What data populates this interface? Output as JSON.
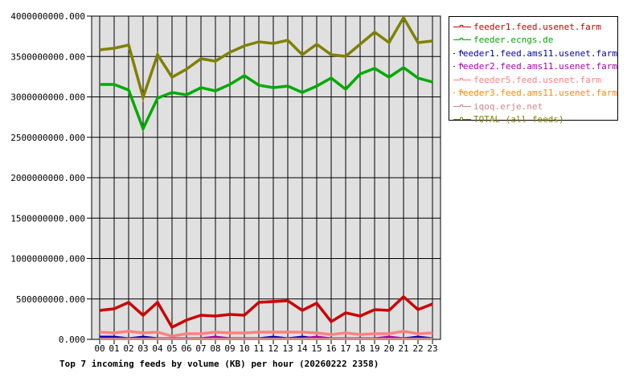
{
  "chart_data": {
    "type": "line",
    "title": "Top 7 incoming feeds by volume (KB) per hour (20260222 2358)",
    "xlabel": "",
    "ylabel": "",
    "ylim": [
      0,
      4000000000
    ],
    "grid": true,
    "legend_position": "right",
    "y_ticks": [
      "0.000",
      "500000000.000",
      "1000000000.000",
      "1500000000.000",
      "2000000000.000",
      "2500000000.000",
      "3000000000.000",
      "3500000000.000",
      "4000000000.000"
    ],
    "categories": [
      "00",
      "01",
      "02",
      "03",
      "04",
      "05",
      "06",
      "07",
      "08",
      "09",
      "10",
      "11",
      "12",
      "13",
      "14",
      "15",
      "16",
      "17",
      "18",
      "19",
      "20",
      "21",
      "22",
      "23"
    ],
    "series": [
      {
        "name": "feeder1.feed.usenet.farm",
        "color": "#cc0000",
        "values": [
          358000000,
          378000000,
          458000000,
          298000000,
          458000000,
          149000000,
          239000000,
          299000000,
          289000000,
          308000000,
          299000000,
          458000000,
          468000000,
          478000000,
          358000000,
          448000000,
          219000000,
          328000000,
          289000000,
          368000000,
          358000000,
          527000000,
          368000000,
          438000000
        ]
      },
      {
        "name": "feeder.ecngs.de",
        "color": "#00aa00",
        "values": [
          3154000000,
          3154000000,
          3085000000,
          2607000000,
          2985000000,
          3055000000,
          3025000000,
          3114000000,
          3075000000,
          3154000000,
          3264000000,
          3144000000,
          3114000000,
          3134000000,
          3055000000,
          3134000000,
          3234000000,
          3095000000,
          3284000000,
          3353000000,
          3244000000,
          3363000000,
          3234000000,
          3184000000
        ]
      },
      {
        "name": "feeder1.feed.ams11.usenet.farm",
        "color": "#0000aa",
        "values": [
          30000000,
          30000000,
          10000000,
          30000000,
          10000000,
          10000000,
          10000000,
          10000000,
          10000000,
          10000000,
          10000000,
          10000000,
          30000000,
          10000000,
          30000000,
          10000000,
          10000000,
          10000000,
          10000000,
          10000000,
          10000000,
          10000000,
          30000000,
          10000000
        ]
      },
      {
        "name": "feeder2.feed.ams11.usenet.farm",
        "color": "#aa00aa",
        "values": [
          10000000,
          10000000,
          10000000,
          10000000,
          10000000,
          10000000,
          10000000,
          10000000,
          30000000,
          10000000,
          10000000,
          10000000,
          10000000,
          10000000,
          10000000,
          30000000,
          10000000,
          10000000,
          10000000,
          10000000,
          30000000,
          10000000,
          10000000,
          10000000
        ]
      },
      {
        "name": "feeder5.feed.usenet.farm",
        "color": "#ff8080",
        "values": [
          90000000,
          80000000,
          100000000,
          80000000,
          90000000,
          40000000,
          70000000,
          70000000,
          90000000,
          80000000,
          80000000,
          90000000,
          90000000,
          90000000,
          90000000,
          80000000,
          60000000,
          80000000,
          60000000,
          70000000,
          70000000,
          100000000,
          70000000,
          80000000
        ]
      },
      {
        "name": "feeder3.feed.ams11.usenet.farm",
        "color": "#ff8800",
        "values": [
          5000000,
          5000000,
          5000000,
          5000000,
          5000000,
          5000000,
          5000000,
          5000000,
          5000000,
          5000000,
          5000000,
          5000000,
          5000000,
          5000000,
          5000000,
          5000000,
          5000000,
          5000000,
          5000000,
          5000000,
          5000000,
          5000000,
          5000000,
          5000000
        ]
      },
      {
        "name": "iqoq.erje.net",
        "color": "#cc8888",
        "values": [
          5000000,
          5000000,
          5000000,
          5000000,
          5000000,
          5000000,
          5000000,
          5000000,
          5000000,
          5000000,
          5000000,
          5000000,
          5000000,
          5000000,
          5000000,
          5000000,
          5000000,
          5000000,
          5000000,
          5000000,
          5000000,
          5000000,
          5000000,
          5000000
        ]
      },
      {
        "name": "TOTAL (all feeds)",
        "color": "#808000",
        "values": [
          3582000000,
          3602000000,
          3642000000,
          2995000000,
          3522000000,
          3244000000,
          3343000000,
          3473000000,
          3443000000,
          3552000000,
          3632000000,
          3682000000,
          3662000000,
          3701000000,
          3522000000,
          3652000000,
          3522000000,
          3502000000,
          3652000000,
          3801000000,
          3672000000,
          3980000000,
          3672000000,
          3692000000
        ]
      }
    ]
  }
}
